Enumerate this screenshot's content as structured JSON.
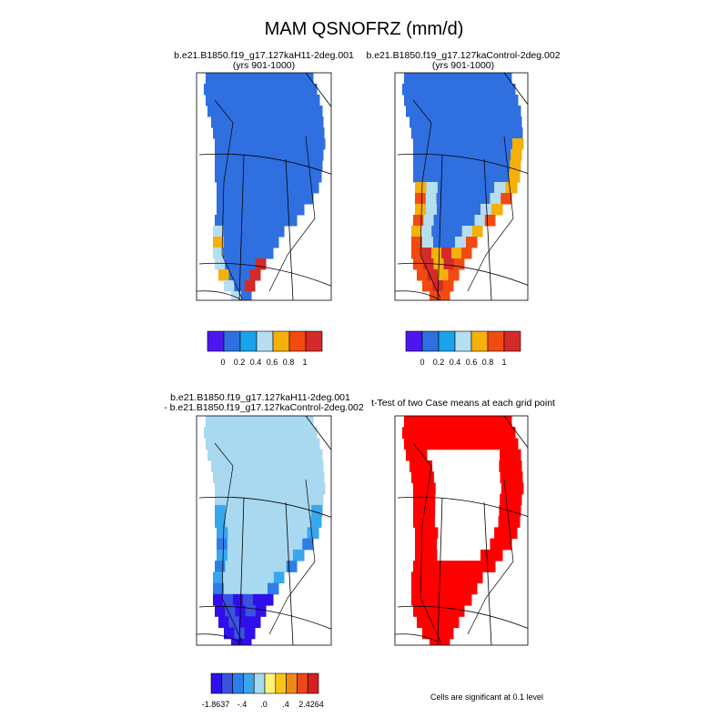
{
  "title": "MAM QSNOFRZ (mm/d)",
  "colors": {
    "seq": [
      "#4e16ee",
      "#2f6fe0",
      "#1aa2ec",
      "#b5dff0",
      "#f5b00a",
      "#f24a10",
      "#d42a2a"
    ],
    "diff": [
      "#3010ea",
      "#3a52e0",
      "#2f7ee8",
      "#3aa6ee",
      "#a8d9f0",
      "#fff27a",
      "#f8c418",
      "#f08818",
      "#ea4818",
      "#d42020"
    ],
    "sig": "#ff0000"
  },
  "chart_data": [
    {
      "type": "heatmap",
      "title": "b.e21.B1850.f19_g17.127kaH11-2deg.001",
      "subtitle": "(yrs 901-1000)",
      "field": "QSNOFRZ",
      "colorbar": {
        "labels": [
          "0",
          "0.2",
          "0.4",
          "0.6",
          "0.8",
          "1"
        ],
        "levels": [
          0,
          0.2,
          0.4,
          0.6,
          0.8,
          1
        ]
      }
    },
    {
      "type": "heatmap",
      "title": "b.e21.B1850.f19_g17.127kaControl-2deg.002",
      "subtitle": "(yrs 901-1000)",
      "field": "QSNOFRZ",
      "colorbar": {
        "labels": [
          "0",
          "0.2",
          "0.4",
          "0.6",
          "0.8",
          "1"
        ],
        "levels": [
          0,
          0.2,
          0.4,
          0.6,
          0.8,
          1
        ]
      }
    },
    {
      "type": "heatmap",
      "title": "b.e21.B1850.f19_g17.127kaH11-2deg.001",
      "subtitle": "- b.e21.B1850.f19_g17.127kaControl-2deg.002",
      "field": "QSNOFRZ difference",
      "colorbar": {
        "labels": [
          "-1.8637",
          "-.4",
          ".0",
          ".4",
          "2.4264"
        ],
        "range": [
          -1.8637,
          2.4264
        ]
      }
    },
    {
      "type": "heatmap",
      "title": "t-Test of two Case means at each grid point",
      "note": "Cells are significant at 0.1 level"
    }
  ]
}
